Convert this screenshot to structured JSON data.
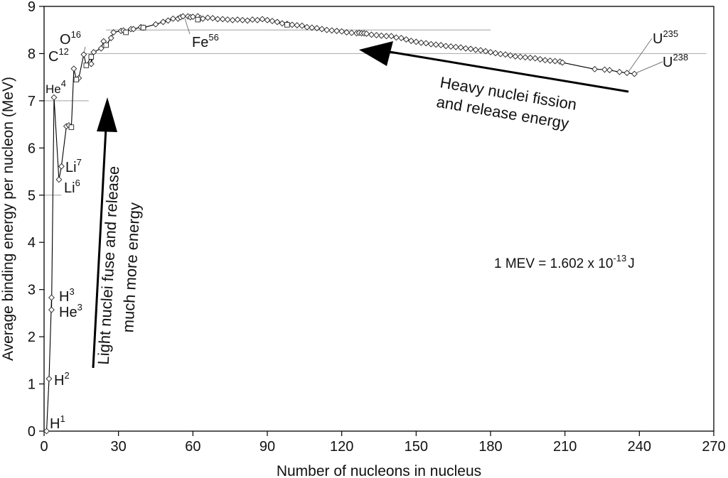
{
  "chart_data": {
    "type": "scatter",
    "xlabel": "Number of nucleons in nucleus",
    "ylabel": "Average binding energy per nucleon (MeV)",
    "xlim": [
      0,
      270
    ],
    "ylim": [
      0,
      9
    ],
    "x_ticks": [
      "0",
      "30",
      "60",
      "90",
      "120",
      "150",
      "180",
      "210",
      "240",
      "270"
    ],
    "y_ticks": [
      "0",
      "1",
      "2",
      "3",
      "4",
      "5",
      "6",
      "7",
      "8",
      "9"
    ],
    "reference_lines": [
      {
        "y": 8.5,
        "x_range": [
          25,
          180
        ]
      },
      {
        "y": 8.0,
        "x_range": [
          16,
          267
        ]
      },
      {
        "y": 7.0,
        "x_range": [
          0,
          18
        ]
      },
      {
        "y": 5.0,
        "x_range": [
          0,
          7
        ]
      }
    ],
    "series": [
      {
        "marker": "diamond",
        "x": [
          1,
          2,
          3,
          3,
          4,
          6,
          7,
          9,
          10,
          12,
          14,
          16,
          19,
          20,
          23,
          24,
          27,
          28,
          31,
          32,
          35,
          36,
          39,
          40,
          45,
          48,
          50,
          52,
          54,
          55,
          56,
          58,
          59,
          60,
          62,
          63,
          64,
          66,
          68,
          70,
          72,
          74,
          76,
          78,
          80,
          82,
          84,
          86,
          88,
          90,
          92,
          94,
          96,
          98,
          100,
          102,
          104,
          106,
          108,
          110,
          112,
          114,
          116,
          118,
          120,
          122,
          124,
          126,
          127,
          128,
          129,
          130,
          132,
          134,
          136,
          138,
          140,
          142,
          144,
          146,
          148,
          150,
          152,
          154,
          156,
          158,
          160,
          162,
          164,
          166,
          168,
          170,
          172,
          174,
          176,
          178,
          180,
          182,
          184,
          186,
          188,
          190,
          192,
          194,
          196,
          198,
          200,
          202,
          204,
          206,
          208,
          209,
          222,
          226,
          228,
          232,
          235,
          238
        ],
        "y": [
          0,
          1.11,
          2.83,
          2.57,
          7.07,
          5.33,
          5.61,
          6.46,
          6.48,
          7.68,
          7.48,
          7.98,
          7.78,
          8.03,
          8.11,
          8.26,
          8.33,
          8.45,
          8.48,
          8.49,
          8.52,
          8.52,
          8.56,
          8.55,
          8.62,
          8.67,
          8.7,
          8.74,
          8.74,
          8.77,
          8.79,
          8.79,
          8.77,
          8.78,
          8.79,
          8.75,
          8.74,
          8.76,
          8.75,
          8.73,
          8.73,
          8.72,
          8.71,
          8.72,
          8.71,
          8.7,
          8.72,
          8.71,
          8.73,
          8.71,
          8.69,
          8.67,
          8.64,
          8.63,
          8.61,
          8.6,
          8.59,
          8.56,
          8.55,
          8.54,
          8.52,
          8.5,
          8.49,
          8.48,
          8.47,
          8.45,
          8.44,
          8.43,
          8.44,
          8.43,
          8.43,
          8.42,
          8.4,
          8.39,
          8.38,
          8.37,
          8.37,
          8.34,
          8.33,
          8.3,
          8.27,
          8.25,
          8.23,
          8.22,
          8.2,
          8.19,
          8.18,
          8.16,
          8.15,
          8.14,
          8.13,
          8.11,
          8.1,
          8.08,
          8.07,
          8.05,
          8.03,
          8.01,
          7.99,
          7.98,
          7.96,
          7.94,
          7.93,
          7.92,
          7.91,
          7.9,
          7.88,
          7.86,
          7.85,
          7.84,
          7.83,
          7.81,
          7.67,
          7.66,
          7.65,
          7.61,
          7.59,
          7.57
        ]
      },
      {
        "marker": "square",
        "x": [
          11,
          13,
          17,
          19,
          25,
          33,
          40,
          62,
          98
        ],
        "y": [
          6.44,
          7.45,
          7.75,
          7.93,
          8.18,
          8.45,
          8.55,
          8.72,
          8.61
        ]
      }
    ],
    "labels": [
      {
        "base": "H",
        "sup": "1",
        "x": 1,
        "y": 0
      },
      {
        "base": "H",
        "sup": "2",
        "x": 2,
        "y": 1.11
      },
      {
        "base": "H",
        "sup": "3",
        "x": 3,
        "y": 2.83
      },
      {
        "base": "He",
        "sup": "3",
        "x": 3,
        "y": 2.57
      },
      {
        "base": "He",
        "sup": "4",
        "x": 4,
        "y": 7.07
      },
      {
        "base": "Li",
        "sup": "6",
        "x": 6,
        "y": 5.33
      },
      {
        "base": "Li",
        "sup": "7",
        "x": 7,
        "y": 5.61
      },
      {
        "base": "C",
        "sup": "12",
        "x": 12,
        "y": 7.68
      },
      {
        "base": "O",
        "sup": "16",
        "x": 16,
        "y": 7.98
      },
      {
        "base": "Fe",
        "sup": "56",
        "x": 56,
        "y": 8.79
      },
      {
        "base": "U",
        "sup": "235",
        "x": 235,
        "y": 7.59
      },
      {
        "base": "U",
        "sup": "238",
        "x": 238,
        "y": 7.57
      }
    ],
    "annotations": [
      {
        "text_lines": [
          "Heavy nuclei fission",
          "and release energy"
        ]
      },
      {
        "text_lines": [
          "Light nuclei fuse and release",
          "much more energy"
        ]
      }
    ],
    "conversion": {
      "text": "1 MEV = 1.602 x 10",
      "sup": "-13",
      "unit": "J"
    },
    "grid": false
  }
}
